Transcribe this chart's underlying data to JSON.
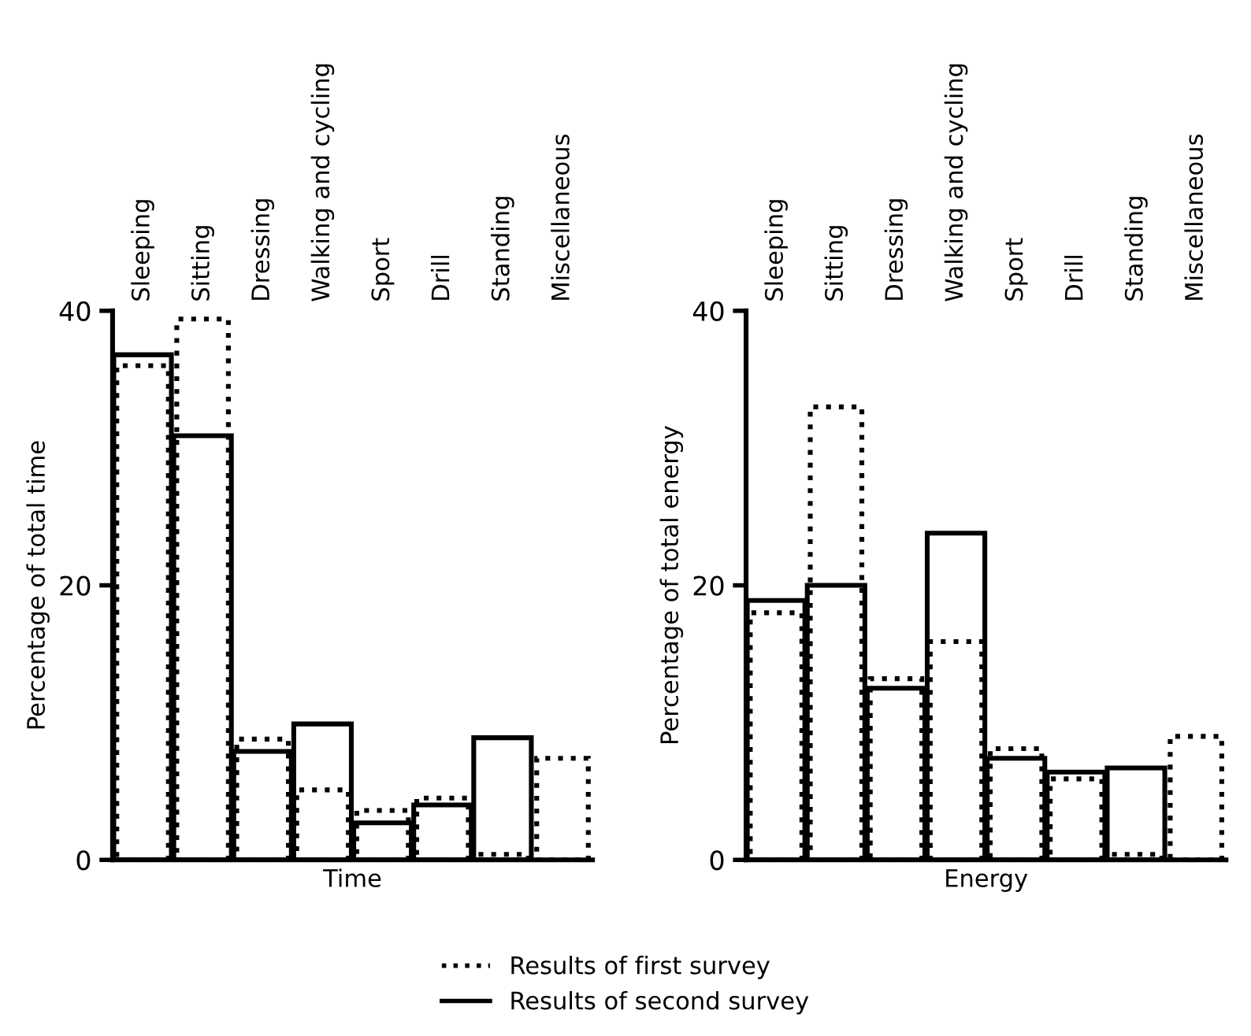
{
  "chart_data": [
    {
      "type": "bar",
      "xlabel": "Time",
      "ylabel": "Percentage of total time",
      "categories": [
        "Sleeping",
        "Sitting",
        "Dressing",
        "Walking and cycling",
        "Sport",
        "Drill",
        "Standing",
        "Miscellaneous"
      ],
      "series": [
        {
          "name": "Results of first survey",
          "color": "#000000",
          "line_style": "dotted",
          "values": [
            36,
            39.4,
            8.8,
            5.1,
            3.6,
            4.5,
            0.4,
            7.4
          ]
        },
        {
          "name": "Results of second survey",
          "color": "#000000",
          "line_style": "solid",
          "values": [
            36.8,
            30.9,
            7.9,
            9.9,
            2.7,
            4,
            8.9,
            null
          ]
        }
      ],
      "ylim": [
        0,
        40
      ],
      "yticks": [
        0,
        20,
        40
      ],
      "grid": false,
      "legend": "bottom"
    },
    {
      "type": "bar",
      "xlabel": "Energy",
      "ylabel": "Percentage of total energy",
      "categories": [
        "Sleeping",
        "Sitting",
        "Dressing",
        "Walking and cycling",
        "Sport",
        "Drill",
        "Standing",
        "Miscellaneous"
      ],
      "series": [
        {
          "color": "#000000",
          "line_style": "dotted",
          "values": [
            18,
            33,
            13.2,
            15.9,
            8.1,
            5.9,
            0.4,
            9
          ]
        },
        {
          "color": "#000000",
          "line_style": "solid",
          "values": [
            18.9,
            20,
            12.5,
            23.8,
            7.4,
            6.4,
            6.7,
            null
          ]
        }
      ],
      "ylim": [
        0,
        40
      ],
      "yticks": [
        0,
        20,
        40
      ],
      "grid": false
    }
  ]
}
